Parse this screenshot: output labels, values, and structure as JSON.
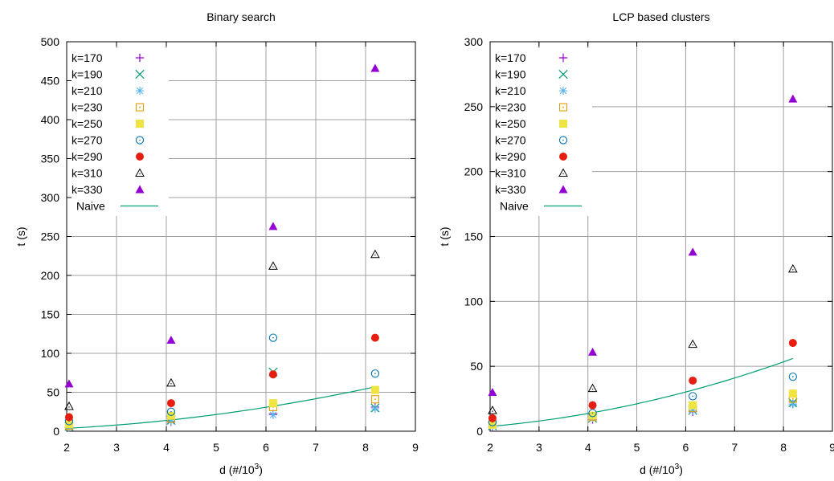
{
  "chart_data": [
    {
      "type": "scatter",
      "title": "Binary search",
      "xlabel": "d (#/10",
      "xlabel_sup": "3",
      "xlabel_suffix": ")",
      "ylabel": "t (s)",
      "xlim": [
        2,
        9
      ],
      "ylim": [
        0,
        500
      ],
      "xticks": [
        "2",
        "3",
        "4",
        "5",
        "6",
        "7",
        "8",
        "9"
      ],
      "yticks": [
        "0",
        "50",
        "100",
        "150",
        "200",
        "250",
        "300",
        "350",
        "400",
        "450",
        "500"
      ],
      "grid": true,
      "legend": "top-left",
      "x": [
        2.048,
        4.096,
        6.144,
        8.192
      ],
      "series": [
        {
          "name": "k=170",
          "marker": "plus",
          "color": "#9400d3",
          "values": [
            5,
            12,
            22,
            31
          ]
        },
        {
          "name": "k=190",
          "marker": "cross",
          "color": "#009e73",
          "values": [
            6,
            14,
            76,
            30
          ]
        },
        {
          "name": "k=210",
          "marker": "star",
          "color": "#56b4e9",
          "values": [
            5,
            13,
            21,
            29
          ]
        },
        {
          "name": "k=230",
          "marker": "box",
          "color": "#e69f00",
          "values": [
            7,
            16,
            31,
            41
          ]
        },
        {
          "name": "k=250",
          "marker": "fbox",
          "color": "#f0e442",
          "values": [
            9,
            20,
            36,
            53
          ]
        },
        {
          "name": "k=270",
          "marker": "circle",
          "color": "#0072b2",
          "values": [
            13,
            25,
            120,
            74
          ]
        },
        {
          "name": "k=290",
          "marker": "fcircle",
          "color": "#e51e10",
          "values": [
            18,
            36,
            73,
            120
          ]
        },
        {
          "name": "k=310",
          "marker": "triangle",
          "color": "#000000",
          "values": [
            32,
            62,
            212,
            227
          ]
        },
        {
          "name": "k=330",
          "marker": "ftriangle",
          "color": "#9400d3",
          "values": [
            61,
            117,
            263,
            466
          ]
        }
      ],
      "naive": {
        "name": "Naive",
        "color": "#009e73",
        "x": [
          2,
          8.192
        ],
        "values": [
          3.7,
          57
        ]
      }
    },
    {
      "type": "scatter",
      "title": "LCP based clusters",
      "xlabel": "d (#/10",
      "xlabel_sup": "3",
      "xlabel_suffix": ")",
      "ylabel": "t (s)",
      "xlim": [
        2,
        9
      ],
      "ylim": [
        0,
        300
      ],
      "xticks": [
        "2",
        "3",
        "4",
        "5",
        "6",
        "7",
        "8",
        "9"
      ],
      "yticks": [
        "0",
        "50",
        "100",
        "150",
        "200",
        "250",
        "300"
      ],
      "grid": true,
      "legend": "top-left",
      "x": [
        2.048,
        4.096,
        6.144,
        8.192
      ],
      "series": [
        {
          "name": "k=170",
          "marker": "plus",
          "color": "#9400d3",
          "values": [
            3,
            9,
            15,
            21
          ]
        },
        {
          "name": "k=190",
          "marker": "cross",
          "color": "#009e73",
          "values": [
            4,
            10,
            16,
            22
          ]
        },
        {
          "name": "k=210",
          "marker": "star",
          "color": "#56b4e9",
          "values": [
            4,
            10,
            16,
            21
          ]
        },
        {
          "name": "k=230",
          "marker": "box",
          "color": "#e69f00",
          "values": [
            5,
            11,
            18,
            25
          ]
        },
        {
          "name": "k=250",
          "marker": "fbox",
          "color": "#f0e442",
          "values": [
            5,
            12,
            20,
            29
          ]
        },
        {
          "name": "k=270",
          "marker": "circle",
          "color": "#0072b2",
          "values": [
            7,
            14,
            27,
            42
          ]
        },
        {
          "name": "k=290",
          "marker": "fcircle",
          "color": "#e51e10",
          "values": [
            10,
            20,
            39,
            68
          ]
        },
        {
          "name": "k=310",
          "marker": "triangle",
          "color": "#000000",
          "values": [
            16,
            33,
            67,
            125
          ]
        },
        {
          "name": "k=330",
          "marker": "ftriangle",
          "color": "#9400d3",
          "values": [
            30,
            61,
            138,
            256
          ]
        }
      ],
      "naive": {
        "name": "Naive",
        "color": "#009e73",
        "x": [
          2,
          8.192
        ],
        "values": [
          3.7,
          56
        ]
      }
    }
  ]
}
